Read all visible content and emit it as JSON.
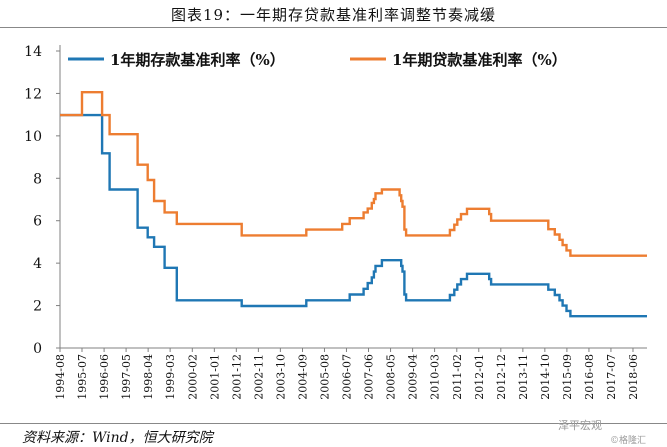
{
  "title": "图表19：一年期存贷款基准利率调整节奏减缓",
  "source": "资料来源：Wind，恒大研究院",
  "watermark": "泽平宏观",
  "watermark_sub": "©格隆汇",
  "chart_data": {
    "type": "line",
    "ylim": [
      0,
      14
    ],
    "yticks": [
      0,
      2,
      4,
      6,
      8,
      10,
      12,
      14
    ],
    "grid": false,
    "legend_position": "top",
    "x_tick_labels": [
      "1994-08",
      "1995-07",
      "1996-06",
      "1997-05",
      "1998-04",
      "1999-03",
      "2000-02",
      "2001-01",
      "2001-12",
      "2002-11",
      "2003-10",
      "2004-09",
      "2005-08",
      "2006-07",
      "2007-06",
      "2008-05",
      "2009-04",
      "2010-03",
      "2011-02",
      "2012-01",
      "2012-12",
      "2013-11",
      "2014-10",
      "2015-09",
      "2016-08",
      "2017-07",
      "2018-06"
    ],
    "series": [
      {
        "name": "1年期存款基准利率（%）",
        "color": "#1F77B4",
        "points": [
          [
            "1994-08-01",
            10.98
          ],
          [
            "1996-05-01",
            9.18
          ],
          [
            "1996-08-23",
            7.47
          ],
          [
            "1997-10-23",
            5.67
          ],
          [
            "1998-03-25",
            5.22
          ],
          [
            "1998-07-01",
            4.77
          ],
          [
            "1998-12-07",
            3.78
          ],
          [
            "1999-06-10",
            2.25
          ],
          [
            "2002-02-21",
            1.98
          ],
          [
            "2004-10-29",
            2.25
          ],
          [
            "2006-08-19",
            2.52
          ],
          [
            "2007-03-18",
            2.79
          ],
          [
            "2007-05-19",
            3.06
          ],
          [
            "2007-07-21",
            3.33
          ],
          [
            "2007-08-22",
            3.6
          ],
          [
            "2007-09-15",
            3.87
          ],
          [
            "2007-12-21",
            4.14
          ],
          [
            "2008-10-09",
            3.87
          ],
          [
            "2008-10-30",
            3.6
          ],
          [
            "2008-11-27",
            2.52
          ],
          [
            "2008-12-23",
            2.25
          ],
          [
            "2010-10-20",
            2.5
          ],
          [
            "2010-12-26",
            2.75
          ],
          [
            "2011-02-09",
            3.0
          ],
          [
            "2011-04-06",
            3.25
          ],
          [
            "2011-07-07",
            3.5
          ],
          [
            "2012-06-08",
            3.25
          ],
          [
            "2012-07-06",
            3.0
          ],
          [
            "2014-11-22",
            2.75
          ],
          [
            "2015-03-01",
            2.5
          ],
          [
            "2015-05-11",
            2.25
          ],
          [
            "2015-06-28",
            2.0
          ],
          [
            "2015-08-26",
            1.75
          ],
          [
            "2015-10-24",
            1.5
          ],
          [
            "2018-12-31",
            1.5
          ]
        ]
      },
      {
        "name": "1年期贷款基准利率（%）",
        "color": "#ED7D31",
        "points": [
          [
            "1994-08-01",
            10.98
          ],
          [
            "1995-01-01",
            10.98
          ],
          [
            "1995-07-01",
            12.06
          ],
          [
            "1996-05-01",
            10.98
          ],
          [
            "1996-08-23",
            10.08
          ],
          [
            "1997-10-23",
            8.64
          ],
          [
            "1998-03-25",
            7.92
          ],
          [
            "1998-07-01",
            6.93
          ],
          [
            "1998-12-07",
            6.39
          ],
          [
            "1999-06-10",
            5.85
          ],
          [
            "2002-02-21",
            5.31
          ],
          [
            "2004-10-29",
            5.58
          ],
          [
            "2006-04-28",
            5.85
          ],
          [
            "2006-08-19",
            6.12
          ],
          [
            "2007-03-18",
            6.39
          ],
          [
            "2007-05-19",
            6.57
          ],
          [
            "2007-07-21",
            6.84
          ],
          [
            "2007-08-22",
            7.02
          ],
          [
            "2007-09-15",
            7.29
          ],
          [
            "2007-12-21",
            7.47
          ],
          [
            "2008-09-16",
            7.2
          ],
          [
            "2008-10-09",
            6.93
          ],
          [
            "2008-10-30",
            6.66
          ],
          [
            "2008-11-27",
            5.58
          ],
          [
            "2008-12-23",
            5.31
          ],
          [
            "2010-10-20",
            5.56
          ],
          [
            "2010-12-26",
            5.81
          ],
          [
            "2011-02-09",
            6.06
          ],
          [
            "2011-04-06",
            6.31
          ],
          [
            "2011-07-07",
            6.56
          ],
          [
            "2012-06-08",
            6.31
          ],
          [
            "2012-07-06",
            6.0
          ],
          [
            "2014-11-22",
            5.6
          ],
          [
            "2015-03-01",
            5.35
          ],
          [
            "2015-05-11",
            5.1
          ],
          [
            "2015-06-28",
            4.85
          ],
          [
            "2015-08-26",
            4.6
          ],
          [
            "2015-10-24",
            4.35
          ],
          [
            "2018-12-31",
            4.35
          ]
        ]
      }
    ]
  }
}
